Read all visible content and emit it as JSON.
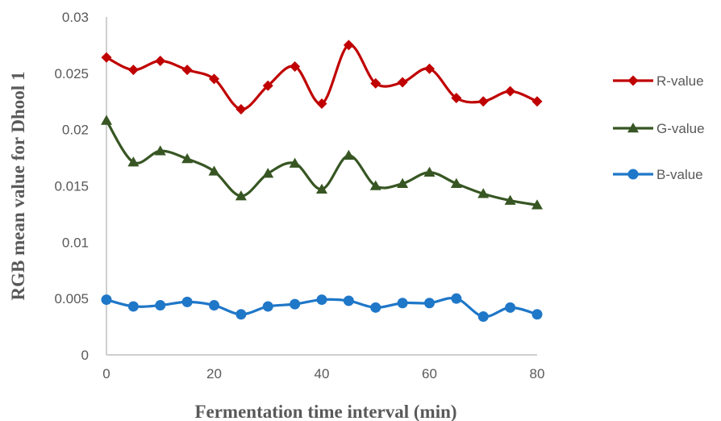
{
  "chart_data": {
    "type": "line",
    "xlabel": "Fermentation time interval (min)",
    "ylabel": "RGB mean value for Dhool 1",
    "xlim": [
      0,
      80
    ],
    "ylim": [
      0,
      0.03
    ],
    "x_ticks": [
      "0",
      "20",
      "40",
      "60",
      "80"
    ],
    "y_ticks": [
      "0",
      "0.005",
      "0.01",
      "0.015",
      "0.02",
      "0.025",
      "0.03"
    ],
    "x": [
      0,
      5,
      10,
      15,
      20,
      25,
      30,
      35,
      40,
      45,
      50,
      55,
      60,
      65,
      70,
      75,
      80
    ],
    "grid": false,
    "legend_position": "right",
    "series": [
      {
        "name": "R-value",
        "color": "#C00000",
        "marker": "diamond",
        "values": [
          0.0264,
          0.0253,
          0.0261,
          0.0253,
          0.0245,
          0.0218,
          0.0239,
          0.0256,
          0.0223,
          0.0275,
          0.0241,
          0.0242,
          0.0254,
          0.0228,
          0.0225,
          0.0234,
          0.0225
        ]
      },
      {
        "name": "G-value",
        "color": "#375623",
        "marker": "triangle",
        "values": [
          0.0208,
          0.0171,
          0.0181,
          0.0174,
          0.0163,
          0.0141,
          0.0161,
          0.017,
          0.0147,
          0.0177,
          0.015,
          0.0152,
          0.0162,
          0.0152,
          0.0143,
          0.0137,
          0.0133
        ]
      },
      {
        "name": "B-value",
        "color": "#1F77C8",
        "marker": "circle",
        "values": [
          0.0049,
          0.0043,
          0.0044,
          0.0047,
          0.0044,
          0.0036,
          0.0043,
          0.0045,
          0.0049,
          0.0048,
          0.0042,
          0.0046,
          0.0046,
          0.005,
          0.0034,
          0.0042,
          0.0036
        ]
      }
    ]
  }
}
